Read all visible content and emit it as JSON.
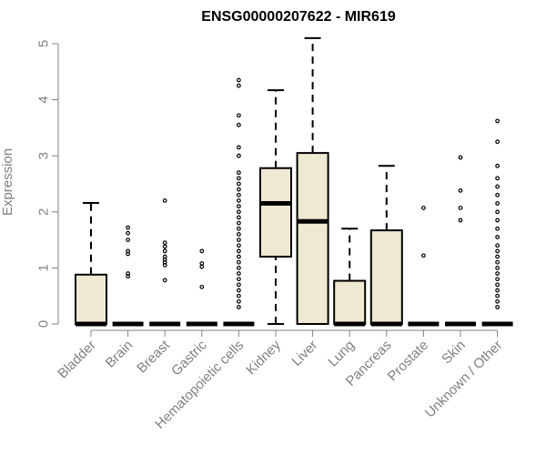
{
  "chart_data": {
    "type": "box",
    "title": "ENSG00000207622 - MIR619",
    "xlabel": "",
    "ylabel": "Expression",
    "ylim": [
      0,
      5.1
    ],
    "yticks": [
      0,
      1,
      2,
      3,
      4,
      5
    ],
    "grid": false,
    "legend": "none",
    "colors": {
      "box_fill": "#EFE8D2",
      "stroke": "#000000",
      "axis": "#808080",
      "label": "#808080"
    },
    "categories": [
      "Bladder",
      "Brain",
      "Breast",
      "Gastric",
      "Hematopoietic cells",
      "Kidney",
      "Liver",
      "Lung",
      "Pancreas",
      "Prostate",
      "Skin",
      "Unknown / Other"
    ],
    "boxes": [
      {
        "category": "Bladder",
        "whisker_low": 0,
        "q1": 0,
        "median": 0,
        "q3": 0.88,
        "whisker_high": 2.16,
        "outliers": []
      },
      {
        "category": "Brain",
        "whisker_low": 0,
        "q1": 0,
        "median": 0,
        "q3": 0,
        "whisker_high": 0,
        "outliers": [
          0.85,
          0.9,
          1.25,
          1.3,
          1.5,
          1.62,
          1.72
        ]
      },
      {
        "category": "Breast",
        "whisker_low": 0,
        "q1": 0,
        "median": 0,
        "q3": 0,
        "whisker_high": 0,
        "outliers": [
          0.78,
          1.05,
          1.1,
          1.15,
          1.2,
          1.3,
          1.38,
          1.45,
          2.2
        ]
      },
      {
        "category": "Gastric",
        "whisker_low": 0,
        "q1": 0,
        "median": 0,
        "q3": 0,
        "whisker_high": 0,
        "outliers": [
          0.66,
          1.02,
          1.08,
          1.3
        ]
      },
      {
        "category": "Hematopoietic cells",
        "whisker_low": 0,
        "q1": 0,
        "median": 0,
        "q3": 0,
        "whisker_high": 0,
        "outliers": [
          0.3,
          0.4,
          0.5,
          0.6,
          0.7,
          0.8,
          0.9,
          1.0,
          1.1,
          1.2,
          1.3,
          1.4,
          1.5,
          1.6,
          1.7,
          1.8,
          1.9,
          2.0,
          2.1,
          2.2,
          2.3,
          2.4,
          2.5,
          2.6,
          2.7,
          3.0,
          3.15,
          3.55,
          3.72,
          4.25,
          4.35
        ]
      },
      {
        "category": "Kidney",
        "whisker_low": 0,
        "q1": 1.2,
        "median": 2.15,
        "q3": 2.78,
        "whisker_high": 4.17,
        "outliers": []
      },
      {
        "category": "Liver",
        "whisker_low": 0,
        "q1": 0,
        "median": 1.83,
        "q3": 3.05,
        "whisker_high": 5.1,
        "outliers": []
      },
      {
        "category": "Lung",
        "whisker_low": 0,
        "q1": 0,
        "median": 0,
        "q3": 0.77,
        "whisker_high": 1.7,
        "outliers": []
      },
      {
        "category": "Pancreas",
        "whisker_low": 0,
        "q1": 0,
        "median": 0,
        "q3": 1.67,
        "whisker_high": 2.82,
        "outliers": []
      },
      {
        "category": "Prostate",
        "whisker_low": 0,
        "q1": 0,
        "median": 0,
        "q3": 0,
        "whisker_high": 0,
        "outliers": [
          1.22,
          2.07
        ]
      },
      {
        "category": "Skin",
        "whisker_low": 0,
        "q1": 0,
        "median": 0,
        "q3": 0,
        "whisker_high": 0,
        "outliers": [
          1.85,
          2.07,
          2.38,
          2.97
        ]
      },
      {
        "category": "Unknown / Other",
        "whisker_low": 0,
        "q1": 0,
        "median": 0,
        "q3": 0,
        "whisker_high": 0,
        "outliers": [
          0.3,
          0.4,
          0.5,
          0.6,
          0.7,
          0.8,
          0.9,
          1.0,
          1.1,
          1.2,
          1.3,
          1.4,
          1.55,
          1.7,
          1.85,
          2.0,
          2.15,
          2.3,
          2.45,
          2.6,
          2.82,
          3.25,
          3.62
        ]
      }
    ]
  }
}
